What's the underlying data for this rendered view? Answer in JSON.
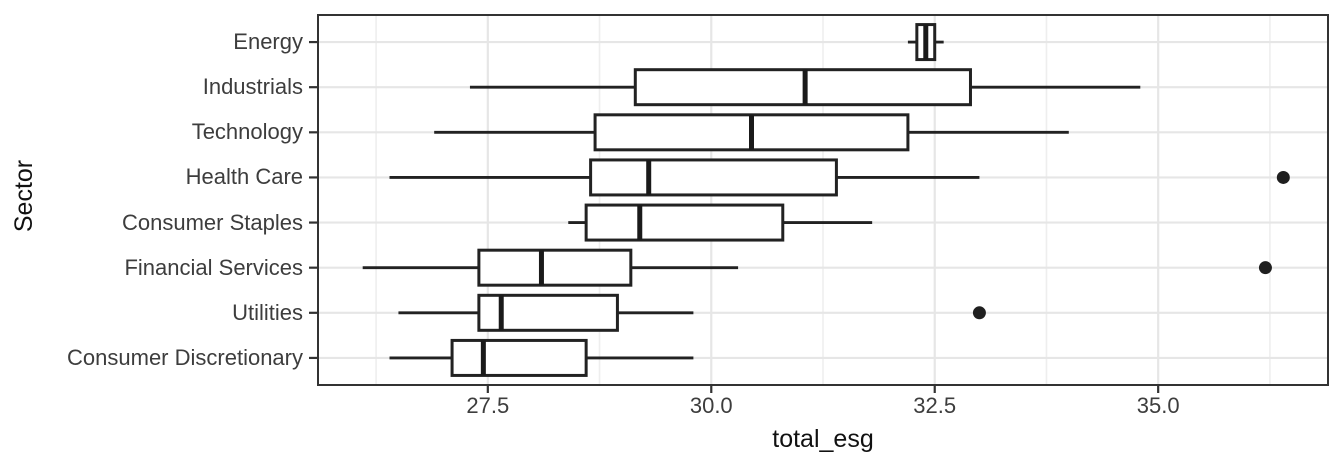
{
  "chart_data": {
    "type": "boxplot",
    "orientation": "horizontal",
    "title": "",
    "xlabel": "total_esg",
    "ylabel": "Sector",
    "xlim": [
      25.6,
      36.9
    ],
    "x_major_ticks": [
      27.5,
      30.0,
      32.5,
      35.0
    ],
    "x_tick_labels": [
      "27.5",
      "30.0",
      "32.5",
      "35.0"
    ],
    "x_minor_gridlines": [
      26.25,
      28.75,
      31.25,
      33.75,
      36.25
    ],
    "grid": true,
    "legend": false,
    "categories": [
      "Energy",
      "Industrials",
      "Technology",
      "Health Care",
      "Consumer Staples",
      "Financial Services",
      "Utilities",
      "Consumer Discretionary"
    ],
    "series": [
      {
        "category": "Energy",
        "whisker_low": 32.2,
        "q1": 32.3,
        "median": 32.4,
        "q3": 32.5,
        "whisker_high": 32.6,
        "outliers": []
      },
      {
        "category": "Industrials",
        "whisker_low": 27.3,
        "q1": 29.15,
        "median": 31.05,
        "q3": 32.9,
        "whisker_high": 34.8,
        "outliers": []
      },
      {
        "category": "Technology",
        "whisker_low": 26.9,
        "q1": 28.7,
        "median": 30.45,
        "q3": 32.2,
        "whisker_high": 34.0,
        "outliers": []
      },
      {
        "category": "Health Care",
        "whisker_low": 26.4,
        "q1": 28.65,
        "median": 29.3,
        "q3": 31.4,
        "whisker_high": 33.0,
        "outliers": [
          36.4
        ]
      },
      {
        "category": "Consumer Staples",
        "whisker_low": 28.4,
        "q1": 28.6,
        "median": 29.2,
        "q3": 30.8,
        "whisker_high": 31.8,
        "outliers": []
      },
      {
        "category": "Financial Services",
        "whisker_low": 26.1,
        "q1": 27.4,
        "median": 28.1,
        "q3": 29.1,
        "whisker_high": 30.3,
        "outliers": [
          36.2
        ]
      },
      {
        "category": "Utilities",
        "whisker_low": 26.5,
        "q1": 27.4,
        "median": 27.65,
        "q3": 28.95,
        "whisker_high": 29.8,
        "outliers": [
          33.0
        ]
      },
      {
        "category": "Consumer Discretionary",
        "whisker_low": 26.4,
        "q1": 27.1,
        "median": 27.45,
        "q3": 28.6,
        "whisker_high": 29.8,
        "outliers": []
      }
    ]
  },
  "colors": {
    "background": "#ffffff",
    "panel_border": "#333333",
    "gridline_major": "#e6e6e6",
    "gridline_minor": "#eeeeee",
    "box_stroke": "#222222",
    "median": "#1a1a1a",
    "outlier": "#1f1f1f",
    "tick": "#333333",
    "tick_label": "#3d3d3d",
    "axis_title": "#111111"
  }
}
